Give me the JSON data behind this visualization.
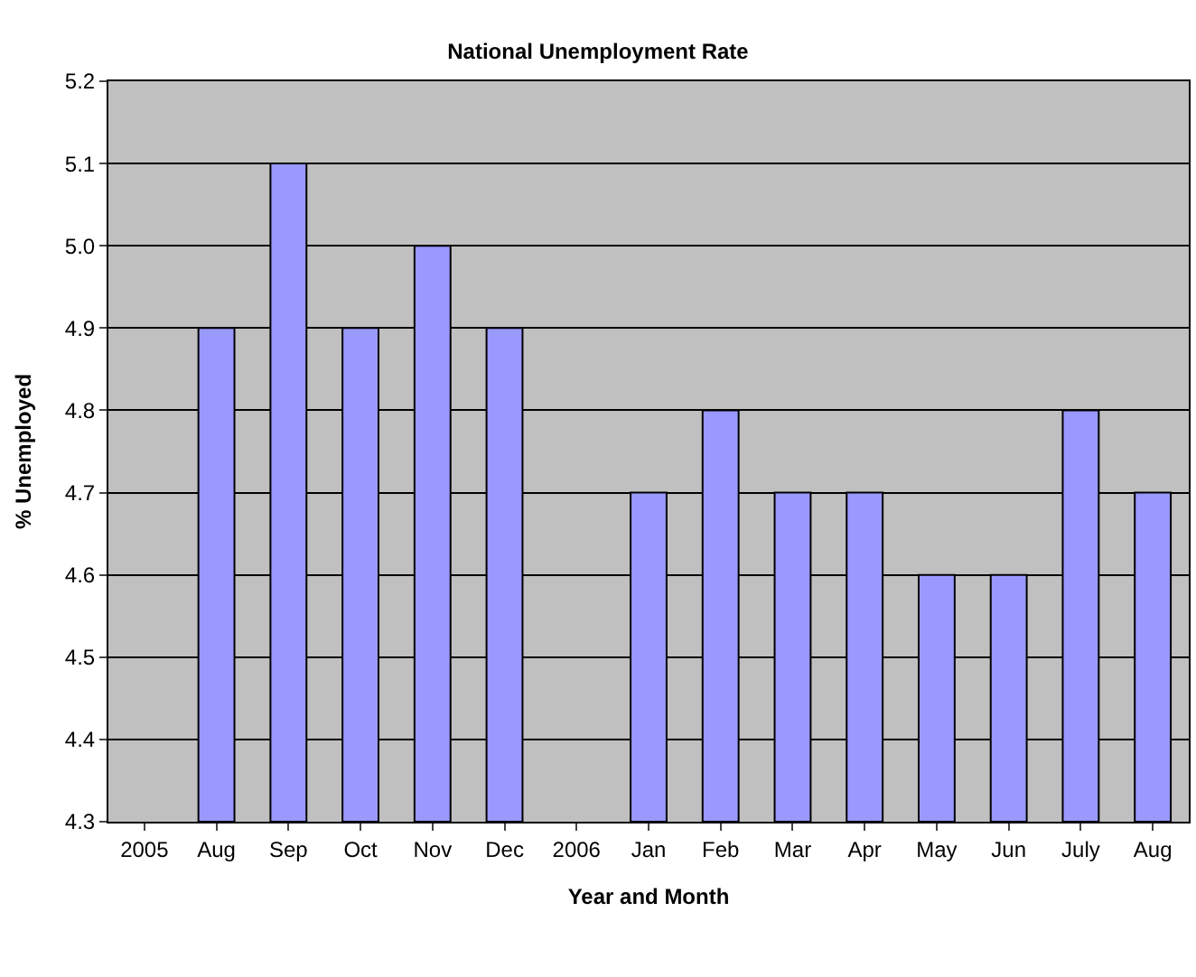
{
  "chart_data": {
    "type": "bar",
    "title": "National Unemployment Rate",
    "xlabel": "Year and Month",
    "ylabel": "% Unemployed",
    "categories": [
      "2005",
      "Aug",
      "Sep",
      "Oct",
      "Nov",
      "Dec",
      "2006",
      "Jan",
      "Feb",
      "Mar",
      "Apr",
      "May",
      "Jun",
      "July",
      "Aug"
    ],
    "values": [
      null,
      4.9,
      5.1,
      4.9,
      5.0,
      4.9,
      null,
      4.7,
      4.8,
      4.7,
      4.7,
      4.6,
      4.6,
      4.8,
      4.7
    ],
    "color": "#9999ff",
    "ylim": [
      4.3,
      5.2
    ],
    "yticks": [
      {
        "value": 4.3,
        "label": "4.3"
      },
      {
        "value": 4.4,
        "label": "4.4"
      },
      {
        "value": 4.5,
        "label": "4.5"
      },
      {
        "value": 4.6,
        "label": "4.6"
      },
      {
        "value": 4.7,
        "label": "4.7"
      },
      {
        "value": 4.8,
        "label": "4.8"
      },
      {
        "value": 4.9,
        "label": "4.9"
      },
      {
        "value": 5.0,
        "label": "5.0"
      },
      {
        "value": 5.1,
        "label": "5.1"
      },
      {
        "value": 5.2,
        "label": "5.2"
      }
    ],
    "grid": "y",
    "legend": false
  }
}
